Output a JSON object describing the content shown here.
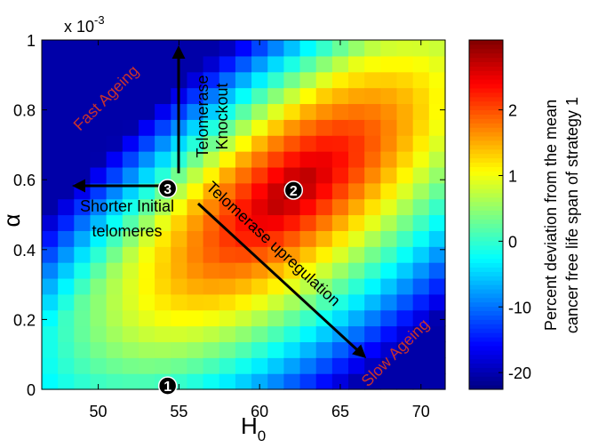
{
  "chart_data": {
    "type": "heatmap",
    "title": "",
    "xlabel": "H",
    "xlabel_subscript": "0",
    "ylabel": "α",
    "y_exponent_label": "x 10",
    "y_exponent_power": "-3",
    "xlim": [
      46.5,
      71.5
    ],
    "ylim": [
      0,
      1
    ],
    "grid": false,
    "x_ticks": [
      50,
      55,
      60,
      65,
      70
    ],
    "y_ticks": [
      0,
      0.2,
      0.4,
      0.6,
      0.8,
      1
    ],
    "y_tick_labels": [
      "0",
      "0.2",
      "0.4",
      "0.6",
      "0.8",
      "1"
    ],
    "grid_size": {
      "nx": 25,
      "ny": 22
    },
    "peak_region": {
      "center_x": 62,
      "center_y": 0.57,
      "value": 2.9
    },
    "colorbar": {
      "label_line1": "Percent deviation from the mean",
      "label_line2": "cancer free life span of strategy 1",
      "ticks": [
        "2",
        "1",
        "0",
        "-10",
        "-20"
      ],
      "tick_values": [
        2,
        1,
        0,
        -10,
        -20
      ],
      "colormap": "jet"
    },
    "markers": [
      {
        "label": "1",
        "x": 54.3,
        "y": 0.01
      },
      {
        "label": "2",
        "x": 62.1,
        "y": 0.57
      },
      {
        "label": "3",
        "x": 54.3,
        "y": 0.575
      }
    ],
    "annotations": {
      "fast_ageing": "Fast Ageing",
      "slow_ageing": "Slow Ageing",
      "telomerase_knockout_line1": "Telomerase",
      "telomerase_knockout_line2": "Knockout",
      "shorter_line1": "Shorter Initial",
      "shorter_line2": "telomeres",
      "upregulation": "Telomerase upregulation"
    },
    "colors": {
      "annotation_red": "#c8322e",
      "text": "#000000"
    }
  }
}
